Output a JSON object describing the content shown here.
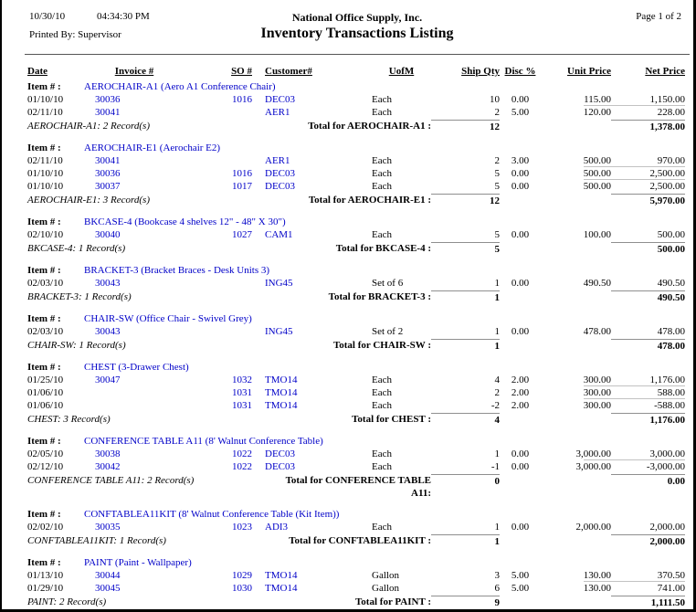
{
  "page": {
    "date": "10/30/10",
    "time": "04:34:30 PM",
    "company": "National Office Supply, Inc.",
    "page_info": "Page 1 of 2",
    "printed_by": "Printed By: Supervisor",
    "title": "Inventory Transactions Listing"
  },
  "colors": {
    "link_blue": "#0000c8"
  },
  "item_label": "Item # :",
  "columns": {
    "date": "Date",
    "invoice": "Invoice #",
    "so": "SO #",
    "customer": "Customer#",
    "uofm": "UofM",
    "ship_qty": "Ship Qty",
    "disc": "Disc %",
    "unit_price": "Unit Price",
    "net_price": "Net Price"
  },
  "sections": [
    {
      "item_name": "AEROCHAIR-A1 (Aero A1 Conference Chair)",
      "rows": [
        {
          "date": "01/10/10",
          "invoice": "30036",
          "so": "1016",
          "customer": "DEC03",
          "uofm": "Each",
          "qty": "10",
          "disc": "0.00",
          "unit": "115.00",
          "net": "1,150.00"
        },
        {
          "date": "02/11/10",
          "invoice": "30041",
          "so": "",
          "customer": "AER1",
          "uofm": "Each",
          "qty": "2",
          "disc": "5.00",
          "unit": "120.00",
          "net": "228.00"
        }
      ],
      "records": "AEROCHAIR-A1: 2 Record(s)",
      "total_label": "Total for AEROCHAIR-A1 :",
      "total_qty": "12",
      "total_net": "1,378.00"
    },
    {
      "item_name": "AEROCHAIR-E1 (Aerochair E2)",
      "rows": [
        {
          "date": "02/11/10",
          "invoice": "30041",
          "so": "",
          "customer": "AER1",
          "uofm": "Each",
          "qty": "2",
          "disc": "3.00",
          "unit": "500.00",
          "net": "970.00"
        },
        {
          "date": "01/10/10",
          "invoice": "30036",
          "so": "1016",
          "customer": "DEC03",
          "uofm": "Each",
          "qty": "5",
          "disc": "0.00",
          "unit": "500.00",
          "net": "2,500.00"
        },
        {
          "date": "01/10/10",
          "invoice": "30037",
          "so": "1017",
          "customer": "DEC03",
          "uofm": "Each",
          "qty": "5",
          "disc": "0.00",
          "unit": "500.00",
          "net": "2,500.00"
        }
      ],
      "records": "AEROCHAIR-E1: 3 Record(s)",
      "total_label": "Total for AEROCHAIR-E1 :",
      "total_qty": "12",
      "total_net": "5,970.00"
    },
    {
      "item_name": "BKCASE-4 (Bookcase 4 shelves 12\" - 48\" X 30\")",
      "rows": [
        {
          "date": "02/10/10",
          "invoice": "30040",
          "so": "1027",
          "customer": "CAM1",
          "uofm": "Each",
          "qty": "5",
          "disc": "0.00",
          "unit": "100.00",
          "net": "500.00"
        }
      ],
      "records": "BKCASE-4: 1 Record(s)",
      "total_label": "Total for BKCASE-4 :",
      "total_qty": "5",
      "total_net": "500.00"
    },
    {
      "item_name": "BRACKET-3 (Bracket Braces - Desk Units 3)",
      "rows": [
        {
          "date": "02/03/10",
          "invoice": "30043",
          "so": "",
          "customer": "ING45",
          "uofm": "Set of 6",
          "qty": "1",
          "disc": "0.00",
          "unit": "490.50",
          "net": "490.50"
        }
      ],
      "records": "BRACKET-3: 1 Record(s)",
      "total_label": "Total for BRACKET-3 :",
      "total_qty": "1",
      "total_net": "490.50"
    },
    {
      "item_name": "CHAIR-SW (Office Chair - Swivel Grey)",
      "rows": [
        {
          "date": "02/03/10",
          "invoice": "30043",
          "so": "",
          "customer": "ING45",
          "uofm": "Set of 2",
          "qty": "1",
          "disc": "0.00",
          "unit": "478.00",
          "net": "478.00"
        }
      ],
      "records": "CHAIR-SW: 1 Record(s)",
      "total_label": "Total for CHAIR-SW :",
      "total_qty": "1",
      "total_net": "478.00"
    },
    {
      "item_name": "CHEST (3-Drawer Chest)",
      "rows": [
        {
          "date": "01/25/10",
          "invoice": "30047",
          "so": "1032",
          "customer": "TMO14",
          "uofm": "Each",
          "qty": "4",
          "disc": "2.00",
          "unit": "300.00",
          "net": "1,176.00"
        },
        {
          "date": "01/06/10",
          "invoice": "",
          "so": "1031",
          "customer": "TMO14",
          "uofm": "Each",
          "qty": "2",
          "disc": "2.00",
          "unit": "300.00",
          "net": "588.00"
        },
        {
          "date": "01/06/10",
          "invoice": "",
          "so": "1031",
          "customer": "TMO14",
          "uofm": "Each",
          "qty": "-2",
          "disc": "2.00",
          "unit": "300.00",
          "net": "-588.00"
        }
      ],
      "records": "CHEST: 3 Record(s)",
      "total_label": "Total for CHEST :",
      "total_qty": "4",
      "total_net": "1,176.00"
    },
    {
      "item_name": "CONFERENCE TABLE A11 (8' Walnut Conference Table)",
      "rows": [
        {
          "date": "02/05/10",
          "invoice": "30038",
          "so": "1022",
          "customer": "DEC03",
          "uofm": "Each",
          "qty": "1",
          "disc": "0.00",
          "unit": "3,000.00",
          "net": "3,000.00"
        },
        {
          "date": "02/12/10",
          "invoice": "30042",
          "so": "1022",
          "customer": "DEC03",
          "uofm": "Each",
          "qty": "-1",
          "disc": "0.00",
          "unit": "3,000.00",
          "net": "-3,000.00"
        }
      ],
      "records": "CONFERENCE TABLE A11: 2 Record(s)",
      "total_label": "Total for CONFERENCE TABLE A11:",
      "total_qty": "0",
      "total_net": "0.00"
    },
    {
      "item_name": "CONFTABLEA11KIT (8' Walnut Conference Table (Kit Item))",
      "rows": [
        {
          "date": "02/02/10",
          "invoice": "30035",
          "so": "1023",
          "customer": "ADI3",
          "uofm": "Each",
          "qty": "1",
          "disc": "0.00",
          "unit": "2,000.00",
          "net": "2,000.00"
        }
      ],
      "records": "CONFTABLEA11KIT: 1 Record(s)",
      "total_label": "Total for CONFTABLEA11KIT :",
      "total_qty": "1",
      "total_net": "2,000.00"
    },
    {
      "item_name": "PAINT (Paint - Wallpaper)",
      "rows": [
        {
          "date": "01/13/10",
          "invoice": "30044",
          "so": "1029",
          "customer": "TMO14",
          "uofm": "Gallon",
          "qty": "3",
          "disc": "5.00",
          "unit": "130.00",
          "net": "370.50"
        },
        {
          "date": "01/29/10",
          "invoice": "30045",
          "so": "1030",
          "customer": "TMO14",
          "uofm": "Gallon",
          "qty": "6",
          "disc": "5.00",
          "unit": "130.00",
          "net": "741.00"
        }
      ],
      "records": "PAINT: 2 Record(s)",
      "total_label": "Total for PAINT :",
      "total_qty": "9",
      "total_net": "1,111.50"
    }
  ]
}
